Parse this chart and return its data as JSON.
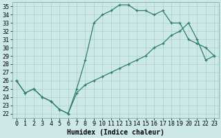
{
  "xlabel": "Humidex (Indice chaleur)",
  "xlim": [
    -0.5,
    23.5
  ],
  "ylim": [
    21.5,
    35.5
  ],
  "yticks": [
    22,
    23,
    24,
    25,
    26,
    27,
    28,
    29,
    30,
    31,
    32,
    33,
    34,
    35
  ],
  "xticks": [
    0,
    1,
    2,
    3,
    4,
    5,
    6,
    7,
    8,
    9,
    10,
    11,
    12,
    13,
    14,
    15,
    16,
    17,
    18,
    19,
    20,
    21,
    22,
    23
  ],
  "line1_x": [
    0,
    1,
    2,
    3,
    4,
    5,
    6,
    7,
    8,
    9,
    10,
    11,
    12,
    13,
    14,
    15,
    16,
    17,
    18,
    19,
    20,
    21,
    22,
    23
  ],
  "line1_y": [
    26.0,
    24.5,
    25.0,
    24.0,
    23.5,
    22.5,
    22.0,
    25.0,
    28.5,
    33.0,
    34.0,
    34.5,
    35.2,
    35.2,
    34.5,
    34.5,
    34.0,
    34.5,
    33.0,
    33.0,
    31.0,
    30.5,
    30.0,
    29.0
  ],
  "line2_x": [
    0,
    1,
    2,
    3,
    4,
    5,
    6,
    7,
    8,
    9,
    10,
    11,
    12,
    13,
    14,
    15,
    16,
    17,
    18,
    19,
    20,
    21,
    22,
    23
  ],
  "line2_y": [
    26.0,
    24.5,
    25.0,
    24.0,
    23.5,
    22.5,
    22.0,
    24.5,
    25.5,
    26.0,
    26.5,
    27.0,
    27.5,
    28.0,
    28.5,
    29.0,
    30.0,
    30.5,
    31.5,
    32.0,
    33.0,
    31.0,
    28.5,
    29.0
  ],
  "line_color": "#2e7d6e",
  "bg_color": "#cce9e7",
  "grid_color": "#aacfcc",
  "tick_fontsize": 6,
  "label_fontsize": 7,
  "linewidth": 0.9,
  "markersize": 3.5
}
